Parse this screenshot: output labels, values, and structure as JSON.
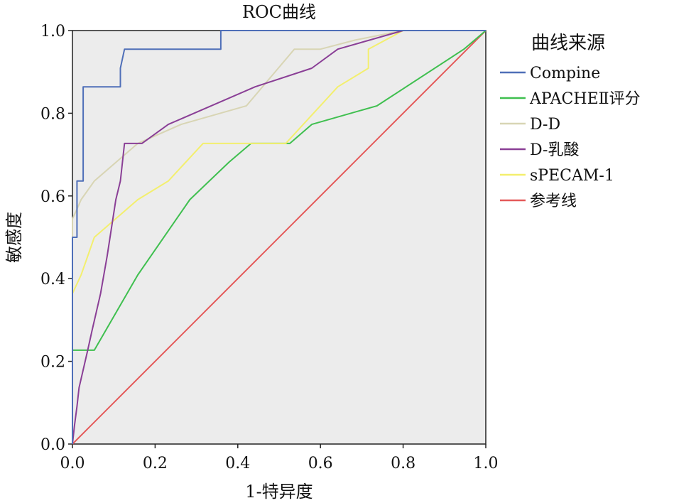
{
  "chart_data": {
    "type": "line",
    "title": "ROC曲线",
    "xlabel": "1-特异度",
    "ylabel": "敏感度",
    "xlim": [
      0,
      1
    ],
    "ylim": [
      0,
      1
    ],
    "x_ticks": [
      "0.0",
      "0.2",
      "0.4",
      "0.6",
      "0.8",
      "1.0"
    ],
    "y_ticks": [
      "0.0",
      "0.2",
      "0.4",
      "0.6",
      "0.8",
      "1.0"
    ],
    "plot_background": "#ececec",
    "grid": false,
    "legend_title": "曲线来源",
    "legend_position": "right",
    "series": [
      {
        "name": "Compine",
        "color": "#4f6fb8",
        "points": [
          [
            0,
            0
          ],
          [
            0,
            0.5
          ],
          [
            0.011,
            0.5
          ],
          [
            0.011,
            0.636
          ],
          [
            0.026,
            0.636
          ],
          [
            0.026,
            0.864
          ],
          [
            0.116,
            0.864
          ],
          [
            0.116,
            0.909
          ],
          [
            0.126,
            0.955
          ],
          [
            0.359,
            0.955
          ],
          [
            0.359,
            1.0
          ],
          [
            1.0,
            1.0
          ]
        ]
      },
      {
        "name": "APACHEⅡ评分",
        "color": "#3fbf4f",
        "points": [
          [
            0,
            0
          ],
          [
            0,
            0.227
          ],
          [
            0.053,
            0.227
          ],
          [
            0.158,
            0.409
          ],
          [
            0.284,
            0.591
          ],
          [
            0.379,
            0.682
          ],
          [
            0.432,
            0.727
          ],
          [
            0.526,
            0.727
          ],
          [
            0.579,
            0.773
          ],
          [
            0.737,
            0.818
          ],
          [
            0.947,
            0.955
          ],
          [
            1.0,
            1.0
          ]
        ]
      },
      {
        "name": "D-D",
        "color": "#d8d5b4",
        "points": [
          [
            0,
            0
          ],
          [
            0,
            0.545
          ],
          [
            0.011,
            0.568
          ],
          [
            0.021,
            0.591
          ],
          [
            0.053,
            0.636
          ],
          [
            0.158,
            0.727
          ],
          [
            0.263,
            0.773
          ],
          [
            0.421,
            0.818
          ],
          [
            0.537,
            0.955
          ],
          [
            0.6,
            0.955
          ],
          [
            0.684,
            0.977
          ],
          [
            0.8,
            1.0
          ],
          [
            1.0,
            1.0
          ]
        ]
      },
      {
        "name": "D-乳酸",
        "color": "#8a3f96",
        "points": [
          [
            0,
            0
          ],
          [
            0.005,
            0.045
          ],
          [
            0.011,
            0.091
          ],
          [
            0.016,
            0.136
          ],
          [
            0.037,
            0.227
          ],
          [
            0.047,
            0.273
          ],
          [
            0.068,
            0.364
          ],
          [
            0.084,
            0.455
          ],
          [
            0.105,
            0.591
          ],
          [
            0.116,
            0.636
          ],
          [
            0.126,
            0.727
          ],
          [
            0.168,
            0.727
          ],
          [
            0.232,
            0.773
          ],
          [
            0.442,
            0.864
          ],
          [
            0.579,
            0.909
          ],
          [
            0.642,
            0.955
          ],
          [
            0.8,
            1.0
          ],
          [
            1.0,
            1.0
          ]
        ]
      },
      {
        "name": "sPECAM-1",
        "color": "#f3ef6e",
        "points": [
          [
            0,
            0
          ],
          [
            0,
            0.364
          ],
          [
            0.021,
            0.409
          ],
          [
            0.053,
            0.5
          ],
          [
            0.158,
            0.591
          ],
          [
            0.232,
            0.636
          ],
          [
            0.316,
            0.727
          ],
          [
            0.516,
            0.727
          ],
          [
            0.642,
            0.864
          ],
          [
            0.716,
            0.909
          ],
          [
            0.716,
            0.955
          ],
          [
            0.8,
            1.0
          ],
          [
            1.0,
            1.0
          ]
        ]
      },
      {
        "name": "参考线",
        "color": "#e45a5a",
        "points": [
          [
            0,
            0
          ],
          [
            1,
            1
          ]
        ]
      }
    ]
  }
}
